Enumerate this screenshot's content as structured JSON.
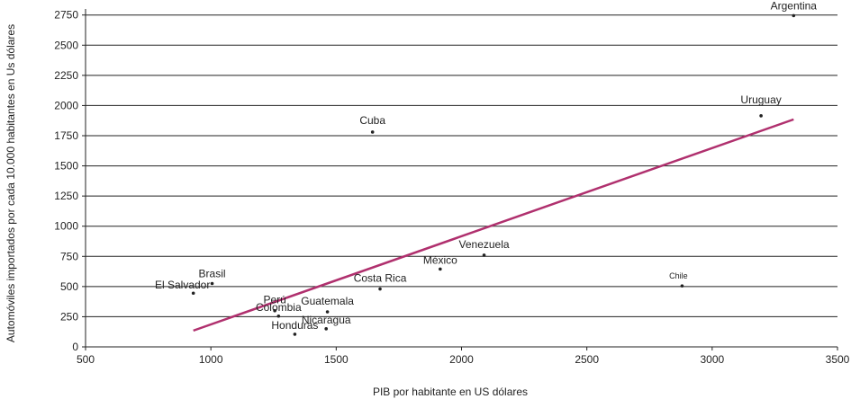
{
  "chart_data": {
    "type": "scatter",
    "xlabel": "PIB por habitante en US dólares",
    "ylabel": "Automóviles importados por cada 10.000 habitantes en Us dólares",
    "xlim": [
      500,
      3500
    ],
    "ylim": [
      0,
      2800
    ],
    "xticks": [
      500,
      1000,
      1500,
      2000,
      2500,
      3000,
      3500
    ],
    "yticks": [
      0,
      250,
      500,
      750,
      1000,
      1250,
      1500,
      1750,
      2000,
      2250,
      2500,
      2750
    ],
    "grid": "horizontal",
    "point_color": "#222222",
    "trendline_color": "#b0306e",
    "points": [
      {
        "label": "Argentina",
        "x": 3325,
        "y": 2745
      },
      {
        "label": "Uruguay",
        "x": 3195,
        "y": 1915
      },
      {
        "label": "Cuba",
        "x": 1645,
        "y": 1780
      },
      {
        "label": "Venezuela",
        "x": 2090,
        "y": 760
      },
      {
        "label": "México",
        "x": 1915,
        "y": 645
      },
      {
        "label": "Costa Rica",
        "x": 1675,
        "y": 480
      },
      {
        "label": "Chile",
        "x": 2880,
        "y": 505
      },
      {
        "label": "Brasil",
        "x": 1005,
        "y": 525
      },
      {
        "label": "El Salvador",
        "x": 930,
        "y": 445
      },
      {
        "label": "Perú",
        "x": 1255,
        "y": 300
      },
      {
        "label": "Colombia",
        "x": 1270,
        "y": 255
      },
      {
        "label": "Guatemala",
        "x": 1465,
        "y": 290
      },
      {
        "label": "Nicaragua",
        "x": 1460,
        "y": 150
      },
      {
        "label": "Honduras",
        "x": 1335,
        "y": 105
      }
    ],
    "trendline": {
      "x": [
        930,
        3325
      ],
      "y": [
        135,
        1885
      ]
    }
  }
}
